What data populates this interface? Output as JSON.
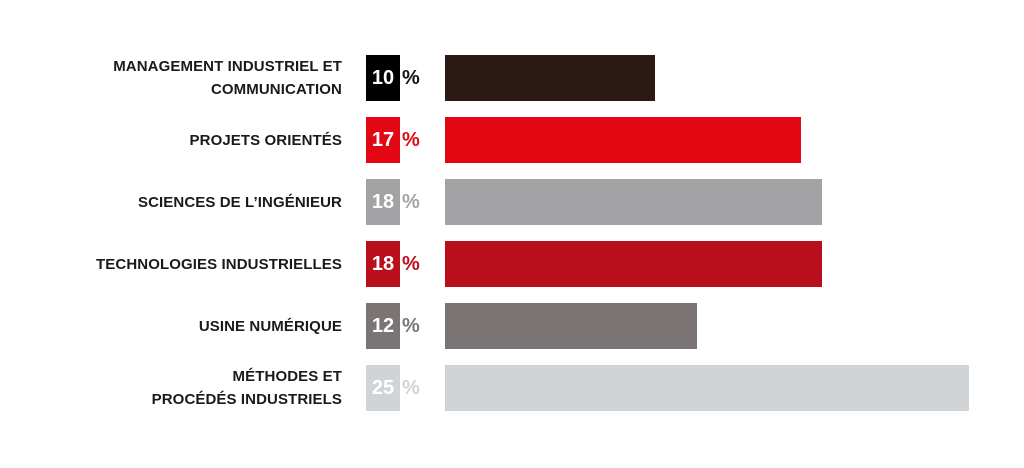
{
  "chart_data": {
    "type": "bar",
    "orientation": "horizontal",
    "unit": "%",
    "xlim": [
      0,
      25
    ],
    "grid": false,
    "legend": "none",
    "categories": [
      "MANAGEMENT INDUSTRIEL ET COMMUNICATION",
      "PROJETS ORIENTÉS",
      "SCIENCES DE L’INGÉNIEUR",
      "TECHNOLOGIES INDUSTRIELLES",
      "USINE NUMÉRIQUE",
      "MÉTHODES ET PROCÉDÉS INDUSTRIELS"
    ],
    "label_lines": [
      [
        "MANAGEMENT INDUSTRIEL ET",
        "COMMUNICATION"
      ],
      [
        "PROJETS ORIENTÉS"
      ],
      [
        "SCIENCES DE L’INGÉNIEUR"
      ],
      [
        "TECHNOLOGIES INDUSTRIELLES"
      ],
      [
        "USINE NUMÉRIQUE"
      ],
      [
        "MÉTHODES ET",
        "PROCÉDÉS INDUSTRIELS"
      ]
    ],
    "values": [
      10,
      17,
      18,
      18,
      12,
      25
    ],
    "value_labels": [
      "10",
      "17",
      "18",
      "18",
      "12",
      "25"
    ],
    "percent_symbol": "%",
    "colors": [
      "#2c1914",
      "#e30613",
      "#a3a3a5",
      "#b90e1c",
      "#7a7474",
      "#d1d4d7"
    ],
    "percent_colors": [
      "#111111",
      "#e30613",
      "#a3a3a5",
      "#b90e1c",
      "#7a7474",
      "#d1d4d7"
    ]
  }
}
